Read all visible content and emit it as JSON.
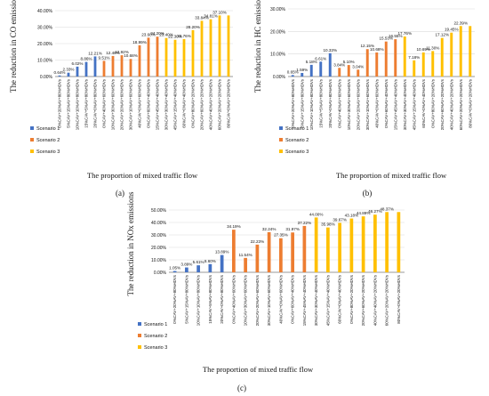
{
  "colors": {
    "scenario_1": "#4472C4",
    "scenario_2": "#ED7D31",
    "scenario_3": "#FFC000",
    "grid": "#d9d9d9",
    "axis": "#7f7f7f"
  },
  "legend": {
    "scenario_1": "Scenario 1",
    "scenario_2": "Scenario 2",
    "scenario_3": "Scenario 3"
  },
  "chart_data": [
    {
      "type": "bar",
      "panel_label": "(a)",
      "ylabel": "The reduction in CO emissions",
      "xlabel": "The proportion of mixed traffic flow",
      "ylim": [
        0,
        40
      ],
      "yticks": [
        "0.00%",
        "10.00%",
        "20.00%",
        "30.00%",
        "40.00%"
      ],
      "grid": true,
      "legend_position": "left",
      "categories": [
        "0%CAV+20%AV+80%HDVs",
        "5%CAV+15%AV+80%HDVs",
        "10%CAV+10%AV+80%HDVs",
        "15%CAV+5%AV+80%HDVs",
        "20%CAV+0%AV+80%HDVs",
        "0%CAV+40%AV+60%HDVs",
        "10%CAV+30%AV+60%HDVs",
        "20%CAV+20%AV+60%HDVs",
        "30%CAV+10%AV+60%HDVs",
        "40%CAV+0%AV+60%HDVs",
        "0%CAV+60%AV+40%HDVs",
        "15%CAV+45%AV+40%HDVs",
        "30%CAV+30%AV+40%HDVs",
        "45%CAV+15%AV+40%HDVs",
        "60%CAV+0%AV+40%HDVs",
        "0%CAV+80%AV+20%HDVs",
        "20%CAV+60%AV+20%HDVs",
        "40%CAV+40%AV+20%HDVs",
        "60%CAV+20%AV+20%HDVs",
        "80%CAV+0%AV+20%HDVs"
      ],
      "values": [
        0.64,
        2.33,
        6.02,
        8.86,
        12.21,
        9.51,
        12.48,
        12.92,
        10.68,
        18.99,
        23.6,
        24.2,
        23.4,
        22.3,
        22.76,
        28.2,
        33.84,
        34.81,
        37.1,
        37.1
      ],
      "value_labels": [
        "0.64%",
        "2.33%",
        "6.02%",
        "8.86%",
        "12.21%",
        "9.51%",
        "12.48%",
        "12.92%",
        "10.68%",
        "18.99%",
        "23.60%",
        "24.20%",
        "23.40%",
        "22.30%",
        "22.76%",
        "28.20%",
        "33.84%",
        "34.81%",
        "37.10%",
        ""
      ],
      "scenario": [
        1,
        1,
        1,
        1,
        1,
        2,
        2,
        2,
        2,
        2,
        2,
        2,
        3,
        3,
        3,
        3,
        3,
        3,
        3,
        3
      ]
    },
    {
      "type": "bar",
      "panel_label": "(b)",
      "ylabel": "The reduction in HC emissions",
      "xlabel": "The proportion of mixed traffic flow",
      "ylim": [
        0,
        30
      ],
      "yticks": [
        "0.00%",
        "10.00%",
        "20.00%",
        "30.00%"
      ],
      "grid": true,
      "legend_position": "left",
      "categories": [
        "0%CAV+20%AV+80%HDVs",
        "5%CAV+15%AV+80%HDVs",
        "10%CAV+10%AV+80%HDVs",
        "15%CAV+5%AV+80%HDVs",
        "20%CAV+0%AV+80%HDVs",
        "0%CAV+40%AV+60%HDVs",
        "10%CAV+30%AV+60%HDVs",
        "20%CAV+20%AV+60%HDVs",
        "30%CAV+10%AV+60%HDVs",
        "40%CAV+0%AV+60%HDVs",
        "0%CAV+60%AV+40%HDVs",
        "15%CAV+45%AV+40%HDVs",
        "30%CAV+30%AV+40%HDVs",
        "45%CAV+15%AV+40%HDVs",
        "60%CAV+0%AV+40%HDVs",
        "0%CAV+80%AV+20%HDVs",
        "20%CAV+60%AV+20%HDVs",
        "40%CAV+40%AV+20%HDVs",
        "60%CAV+20%AV+20%HDVs",
        "80%CAV+0%AV+20%HDVs"
      ],
      "values": [
        0.65,
        1.59,
        5.18,
        6.61,
        10.33,
        3.84,
        5.1,
        3.04,
        12.15,
        10.68,
        15.53,
        16.55,
        17.76,
        7.18,
        10.69,
        11.3,
        17.12,
        19.45,
        22.39,
        22.39
      ],
      "value_labels": [
        "0.65%",
        "1.59%",
        "5.18%",
        "6.61%",
        "10.33%",
        "3.84%",
        "5.10%",
        "3.04%",
        "12.15%",
        "10.68%",
        "15.53%",
        "16.55%",
        "17.76%",
        "7.18%",
        "10.69%",
        "11.30%",
        "17.12%",
        "19.45%",
        "22.39%",
        ""
      ],
      "scenario": [
        1,
        1,
        1,
        1,
        1,
        2,
        2,
        2,
        2,
        2,
        2,
        2,
        3,
        3,
        3,
        3,
        3,
        3,
        3,
        3
      ]
    },
    {
      "type": "bar",
      "panel_label": "(c)",
      "ylabel": "The reduction in NOx emissions",
      "xlabel": "The proportion of mixed traffic flow",
      "ylim": [
        0,
        50
      ],
      "yticks": [
        "0.00%",
        "10.00%",
        "20.00%",
        "30.00%",
        "40.00%",
        "50.00%"
      ],
      "grid": true,
      "legend_position": "left",
      "categories": [
        "0%CAV+20%AV+80%HDVs",
        "5%CAV+15%AV+80%HDVs",
        "10%CAV+10%AV+80%HDVs",
        "15%CAV+5%AV+80%HDVs",
        "20%CAV+0%AV+80%HDVs",
        "0%CAV+40%AV+60%HDVs",
        "10%CAV+30%AV+60%HDVs",
        "20%CAV+20%AV+60%HDVs",
        "30%CAV+10%AV+60%HDVs",
        "40%CAV+0%AV+60%HDVs",
        "0%CAV+60%AV+40%HDVs",
        "15%CAV+45%AV+40%HDVs",
        "30%CAV+30%AV+40%HDVs",
        "45%CAV+15%AV+40%HDVs",
        "60%CAV+0%AV+40%HDVs",
        "0%CAV+80%AV+20%HDVs",
        "20%CAV+60%AV+20%HDVs",
        "40%CAV+40%AV+20%HDVs",
        "60%CAV+20%AV+20%HDVs",
        "80%CAV+0%AV+20%HDVs"
      ],
      "values": [
        1.05,
        3.89,
        5.61,
        6.6,
        13.89,
        34.19,
        11.54,
        22.23,
        32.24,
        27.35,
        31.97,
        37.22,
        44.0,
        35.98,
        39.67,
        43.18,
        44.89,
        46.27,
        48.37,
        48.37
      ],
      "value_labels": [
        "1.05%",
        "3.89%",
        "5.61%",
        "6.60%",
        "13.89%",
        "34.19%",
        "11.54%",
        "22.23%",
        "32.24%",
        "27.35%",
        "31.97%",
        "37.22%",
        "44.00%",
        "35.98%",
        "39.67%",
        "43.18%",
        "44.89%",
        "46.27%",
        "48.37%",
        ""
      ],
      "scenario": [
        1,
        1,
        1,
        1,
        1,
        2,
        2,
        2,
        2,
        2,
        2,
        2,
        3,
        3,
        3,
        3,
        3,
        3,
        3,
        3
      ]
    }
  ]
}
